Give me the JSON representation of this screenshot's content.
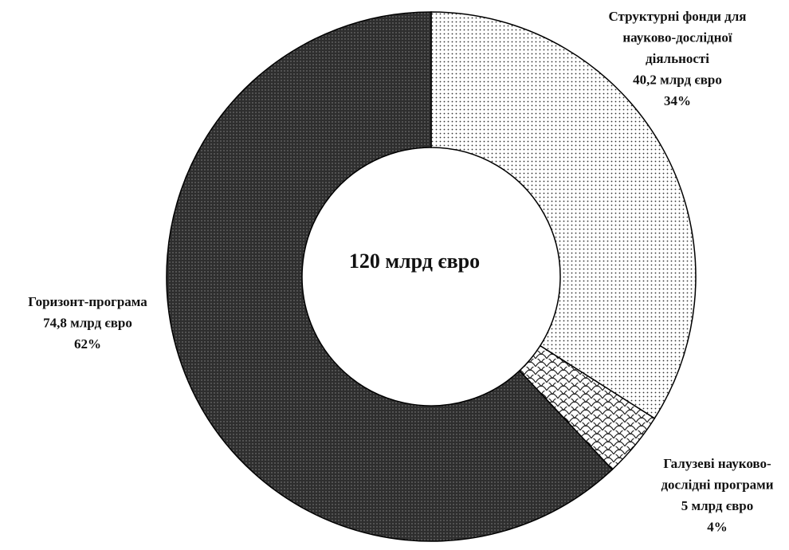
{
  "chart_data": {
    "type": "donut",
    "center_label": "120 млрд євро",
    "categories": [
      [
        "Структурні фонди для",
        "науково-дослідної",
        "діяльності"
      ],
      [
        "Галузеві науково-",
        "дослідні програми"
      ],
      [
        "Горизонт-програма"
      ]
    ],
    "amounts": [
      40.2,
      5,
      74.8
    ],
    "amount_labels": [
      "40,2 млрд євро",
      "5 млрд євро",
      "74,8 млрд євро"
    ],
    "values": [
      34,
      4,
      62
    ],
    "value_labels": [
      "34%",
      "4%",
      "62%"
    ]
  }
}
